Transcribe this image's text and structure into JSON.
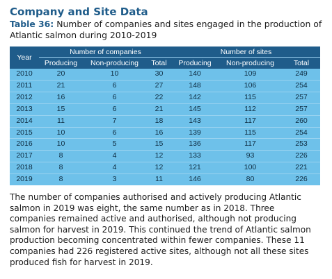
{
  "heading": "Company and Site Data",
  "caption": {
    "number": "Table 36:",
    "text": " Number of companies and sites engaged in the production of Atlantic salmon during 2010-2019"
  },
  "table": {
    "year_header": "Year",
    "group_companies": "Number of companies",
    "group_sites": "Number of sites",
    "sub_headers": [
      "Producing",
      "Non-producing",
      "Total",
      "Producing",
      "Non-producing",
      "Total"
    ],
    "rows": [
      [
        "2010",
        "20",
        "10",
        "30",
        "140",
        "109",
        "249"
      ],
      [
        "2011",
        "21",
        "6",
        "27",
        "148",
        "106",
        "254"
      ],
      [
        "2012",
        "16",
        "6",
        "22",
        "142",
        "115",
        "257"
      ],
      [
        "2013",
        "15",
        "6",
        "21",
        "145",
        "112",
        "257"
      ],
      [
        "2014",
        "11",
        "7",
        "18",
        "143",
        "117",
        "260"
      ],
      [
        "2015",
        "10",
        "6",
        "16",
        "139",
        "115",
        "254"
      ],
      [
        "2016",
        "10",
        "5",
        "15",
        "136",
        "117",
        "253"
      ],
      [
        "2017",
        "8",
        "4",
        "12",
        "133",
        "93",
        "226"
      ],
      [
        "2018",
        "8",
        "4",
        "12",
        "121",
        "100",
        "221"
      ],
      [
        "2019",
        "8",
        "3",
        "11",
        "146",
        "80",
        "226"
      ]
    ]
  },
  "paragraph": "The number of companies authorised and actively producing Atlantic salmon in 2019 was eight, the same number as in 2018. Three companies remained active and authorised, although not producing salmon for harvest in 2019. This continued the trend of Atlantic salmon production becoming concentrated within fewer companies. These 11 companies had 226 registered active sites, although not all these sites produced fish for harvest in 2019."
}
